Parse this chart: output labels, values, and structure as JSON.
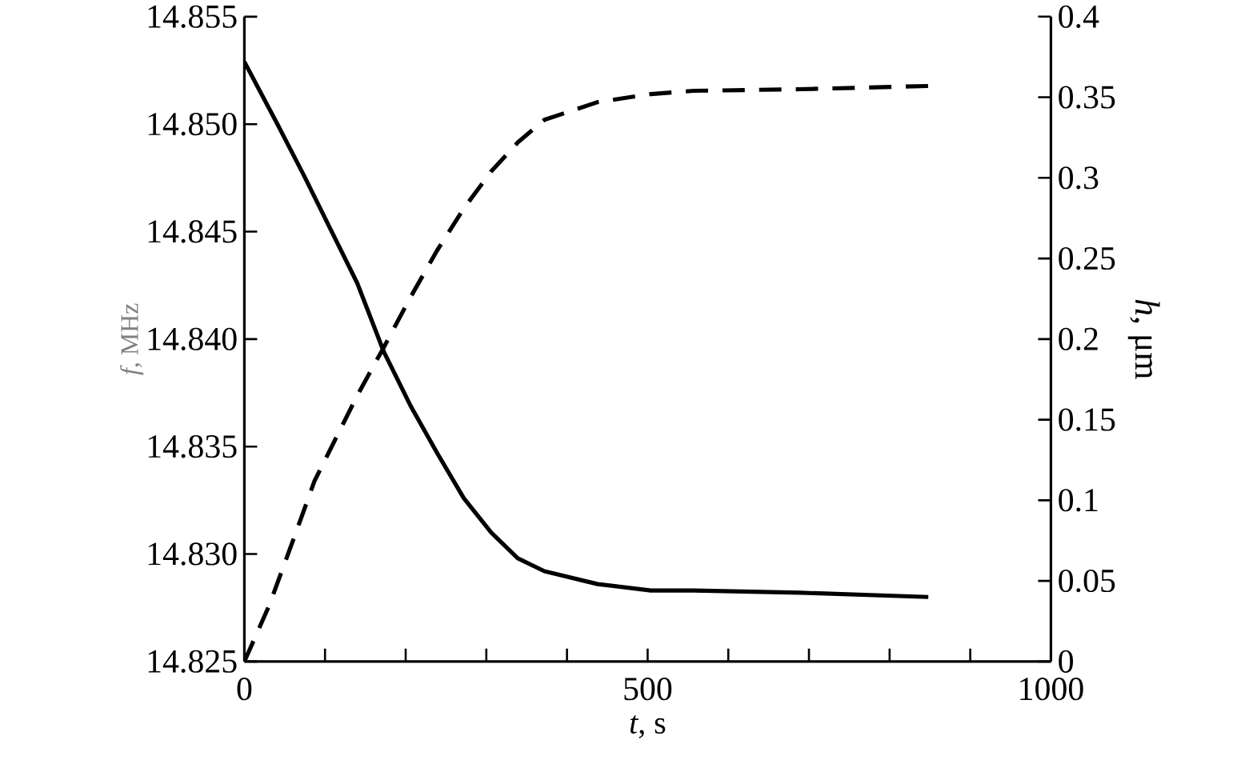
{
  "chart_data": {
    "type": "line",
    "xlabel": "*t*, s",
    "ylabel": "*f*, MHz",
    "y2label": "*h*, μm",
    "xlim": [
      0,
      1000
    ],
    "xticks": [
      0,
      {
        "value": 100,
        "label": null
      },
      {
        "value": 200,
        "label": null
      },
      {
        "value": 300,
        "label": null
      },
      {
        "value": 400,
        "label": null
      },
      500,
      {
        "value": 600,
        "label": null
      },
      {
        "value": 700,
        "label": null
      },
      {
        "value": 800,
        "label": null
      },
      {
        "value": 900,
        "label": null
      },
      1000
    ],
    "ylim": [
      14.825,
      14.855
    ],
    "yticks": [
      14.825,
      {
        "value": 14.83,
        "label": "14.830"
      },
      14.835,
      {
        "value": 14.84,
        "label": "14.840"
      },
      14.845,
      {
        "value": 14.85,
        "label": "14.850"
      },
      14.855
    ],
    "y2lim": [
      0,
      0.4
    ],
    "y2ticks": [
      0,
      0.05,
      0.1,
      0.15,
      0.2,
      0.25,
      0.3,
      0.35,
      0.4
    ],
    "grid": false,
    "legend": false,
    "series": [
      {
        "color": "#000000",
        "line_style": "solid",
        "x": [
          0,
          41,
          74,
          107,
          140,
          173,
          206,
          239,
          272,
          306,
          339,
          372,
          438,
          504,
          557,
          689,
          848
        ],
        "values": [
          14.8529,
          14.85,
          14.8476,
          14.8451,
          14.8426,
          14.8394,
          14.8369,
          14.8347,
          14.8326,
          14.831,
          14.8298,
          14.8292,
          14.8286,
          14.8283,
          14.8283,
          14.8282,
          14.828
        ]
      },
      {
        "color": "#000000",
        "line_style": "dashed",
        "axis": "y2",
        "x": [
          0,
          31,
          61,
          87,
          114,
          140,
          173,
          206,
          239,
          272,
          306,
          339,
          372,
          438,
          504,
          557,
          689,
          848
        ],
        "values": [
          0,
          0.035,
          0.076,
          0.112,
          0.139,
          0.165,
          0.195,
          0.226,
          0.255,
          0.281,
          0.304,
          0.322,
          0.336,
          0.347,
          0.352,
          0.354,
          0.355,
          0.357
        ]
      }
    ]
  }
}
